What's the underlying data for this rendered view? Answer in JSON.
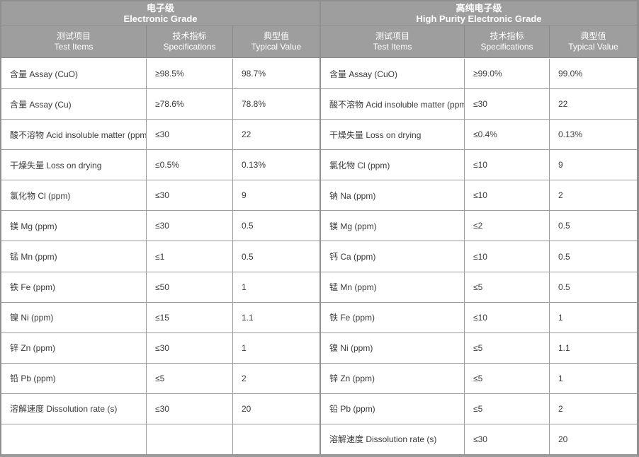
{
  "columns": [
    {
      "zh": "测试项目",
      "en": "Test Items"
    },
    {
      "zh": "技术指标",
      "en": "Specifications"
    },
    {
      "zh": "典型值",
      "en": "Typical Value"
    }
  ],
  "electronic_grade": {
    "title_zh": "电子级",
    "title_en": "Electronic Grade",
    "rows": [
      {
        "item": "含量 Assay (CuO)",
        "spec": "≥98.5%",
        "typical": "98.7%"
      },
      {
        "item": "含量 Assay (Cu)",
        "spec": "≥78.6%",
        "typical": "78.8%"
      },
      {
        "item": "酸不溶物 Acid insoluble matter (ppm)",
        "spec": "≤30",
        "typical": "22"
      },
      {
        "item": "干燥失量 Loss on drying",
        "spec": "≤0.5%",
        "typical": "0.13%"
      },
      {
        "item": "氯化物 Cl (ppm)",
        "spec": "≤30",
        "typical": "9"
      },
      {
        "item": "镁 Mg (ppm)",
        "spec": "≤30",
        "typical": "0.5"
      },
      {
        "item": "锰 Mn (ppm)",
        "spec": "≤1",
        "typical": "0.5"
      },
      {
        "item": "铁 Fe (ppm)",
        "spec": "≤50",
        "typical": "1"
      },
      {
        "item": "镍 Ni (ppm)",
        "spec": "≤15",
        "typical": "1.1"
      },
      {
        "item": "锌 Zn (ppm)",
        "spec": "≤30",
        "typical": "1"
      },
      {
        "item": "铅 Pb (ppm)",
        "spec": "≤5",
        "typical": "2"
      },
      {
        "item": "溶解速度 Dissolution rate (s)",
        "spec": "≤30",
        "typical": "20"
      },
      {
        "item": "",
        "spec": "",
        "typical": ""
      }
    ]
  },
  "high_purity_grade": {
    "title_zh": "高纯电子级",
    "title_en": "High Purity Electronic Grade",
    "rows": [
      {
        "item": "含量 Assay (CuO)",
        "spec": "≥99.0%",
        "typical": "99.0%"
      },
      {
        "item": "酸不溶物 Acid insoluble matter (ppm)",
        "spec": "≤30",
        "typical": "22"
      },
      {
        "item": "干燥失量 Loss on drying",
        "spec": "≤0.4%",
        "typical": "0.13%"
      },
      {
        "item": "氯化物 Cl (ppm)",
        "spec": "≤10",
        "typical": "9"
      },
      {
        "item": "钠 Na (ppm)",
        "spec": "≤10",
        "typical": "2"
      },
      {
        "item": "镁 Mg (ppm)",
        "spec": "≤2",
        "typical": "0.5"
      },
      {
        "item": "钙 Ca (ppm)",
        "spec": "≤10",
        "typical": "0.5"
      },
      {
        "item": "锰 Mn (ppm)",
        "spec": "≤5",
        "typical": "0.5"
      },
      {
        "item": "铁 Fe (ppm)",
        "spec": "≤10",
        "typical": "1"
      },
      {
        "item": "镍 Ni (ppm)",
        "spec": "≤5",
        "typical": "1.1"
      },
      {
        "item": "锌 Zn (ppm)",
        "spec": "≤5",
        "typical": "1"
      },
      {
        "item": "铅 Pb (ppm)",
        "spec": "≤5",
        "typical": "2"
      },
      {
        "item": "溶解速度 Dissolution rate (s)",
        "spec": "≤30",
        "typical": "20"
      }
    ]
  },
  "colors": {
    "header_bg": "#9e9e9e",
    "header_text": "#ffffff",
    "header_border": "#8b8b8b",
    "body_border": "#9c9c9c",
    "body_text": "#3a3a3a",
    "outer_border": "#8f8f8f"
  }
}
